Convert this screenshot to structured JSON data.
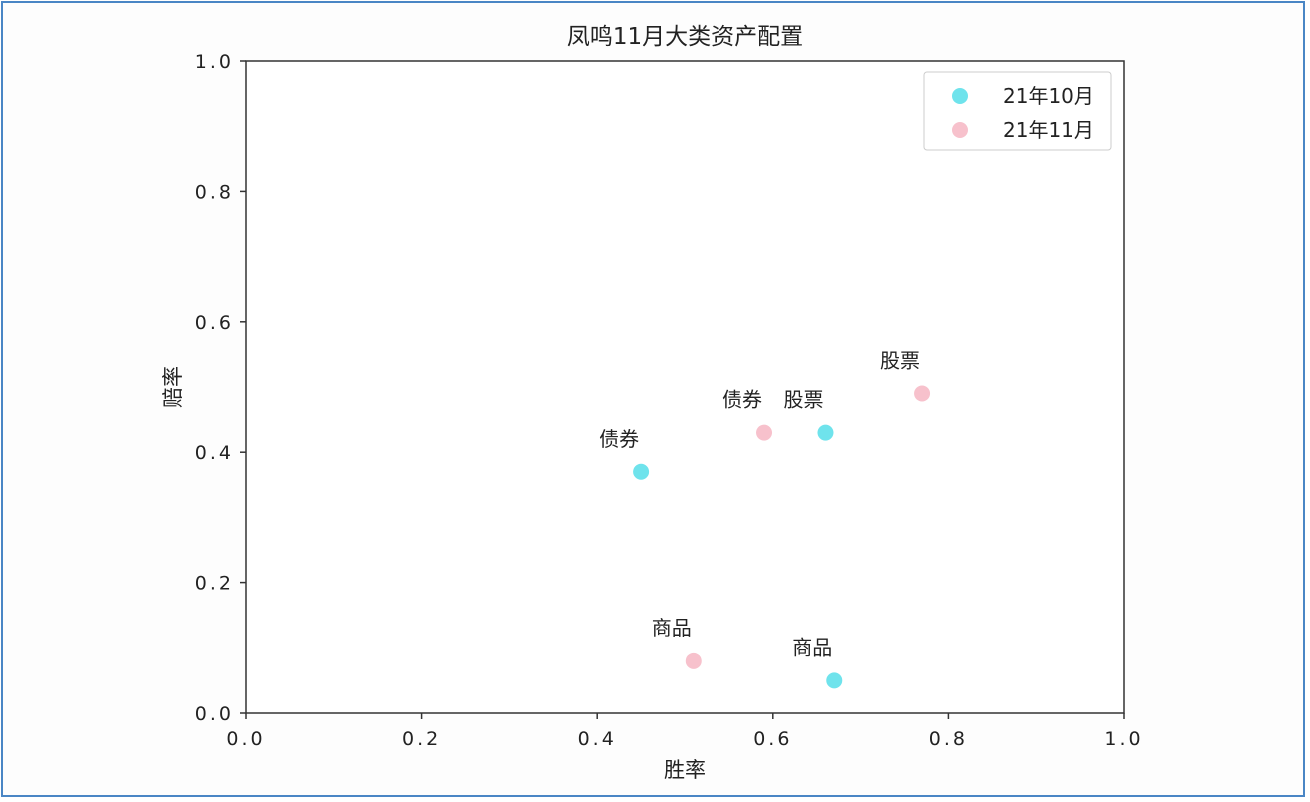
{
  "chart_data": {
    "type": "scatter",
    "title": "凤鸣11月大类资产配置",
    "xlabel": "胜率",
    "ylabel": "赔率",
    "xlim": [
      0.0,
      1.0
    ],
    "ylim": [
      0.0,
      1.0
    ],
    "x_ticks": [
      "0.0",
      "0.2",
      "0.4",
      "0.6",
      "0.8",
      "1.0"
    ],
    "y_ticks": [
      "0.0",
      "0.2",
      "0.4",
      "0.6",
      "0.8",
      "1.0"
    ],
    "grid": false,
    "legend_position": "top-right",
    "series": [
      {
        "name": "21年10月",
        "color": "#6fe3ec",
        "points": [
          {
            "label": "债券",
            "x": 0.45,
            "y": 0.37
          },
          {
            "label": "股票",
            "x": 0.66,
            "y": 0.43
          },
          {
            "label": "商品",
            "x": 0.67,
            "y": 0.05
          }
        ]
      },
      {
        "name": "21年11月",
        "color": "#f7c1cc",
        "points": [
          {
            "label": "债券",
            "x": 0.59,
            "y": 0.43
          },
          {
            "label": "股票",
            "x": 0.77,
            "y": 0.49
          },
          {
            "label": "商品",
            "x": 0.51,
            "y": 0.08
          }
        ]
      }
    ]
  }
}
